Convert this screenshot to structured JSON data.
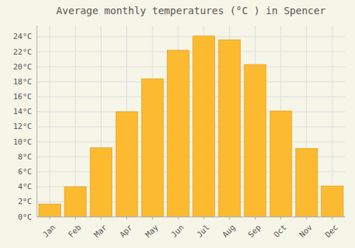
{
  "chart_data": {
    "type": "bar",
    "title": "Average monthly temperatures (°C ) in Spencer",
    "categories": [
      "Jan",
      "Feb",
      "Mar",
      "Apr",
      "May",
      "Jun",
      "Jul",
      "Aug",
      "Sep",
      "Oct",
      "Nov",
      "Dec"
    ],
    "values": [
      1.7,
      4.0,
      9.2,
      14.0,
      18.4,
      22.2,
      24.1,
      23.6,
      20.3,
      14.1,
      9.1,
      4.1
    ],
    "color": "#FBBA30",
    "ylim": [
      0,
      25.5
    ],
    "yticks": [
      {
        "value": 0,
        "label": "0°C"
      },
      {
        "value": 2,
        "label": "2°C"
      },
      {
        "value": 4,
        "label": "4°C"
      },
      {
        "value": 6,
        "label": "6°C"
      },
      {
        "value": 8,
        "label": "8°C"
      },
      {
        "value": 10,
        "label": "10°C"
      },
      {
        "value": 12,
        "label": "12°C"
      },
      {
        "value": 14,
        "label": "14°C"
      },
      {
        "value": 16,
        "label": "16°C"
      },
      {
        "value": 18,
        "label": "18°C"
      },
      {
        "value": 20,
        "label": "20°C"
      },
      {
        "value": 22,
        "label": "22°C"
      },
      {
        "value": 24,
        "label": "24°C"
      }
    ],
    "grid": true
  }
}
